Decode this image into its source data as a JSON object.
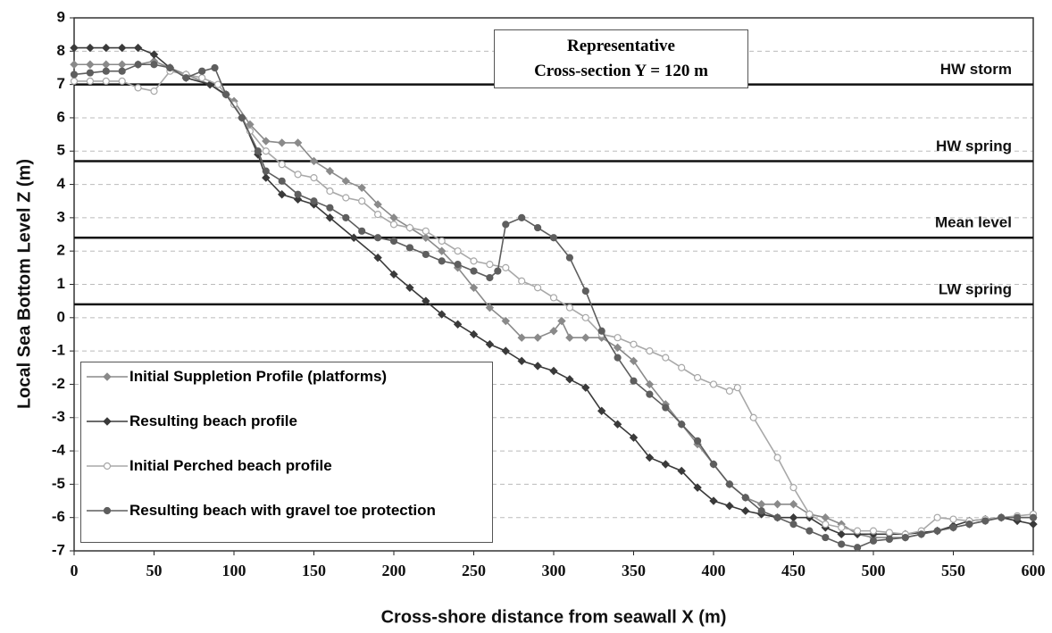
{
  "chart_data": {
    "type": "line",
    "title_lines": [
      "Representative",
      "Cross-section Y = 120 m"
    ],
    "x_label": "Cross-shore distance from seawall X (m)",
    "y_label": "Local Sea Bottom Level Z (m)",
    "xlim": [
      0,
      600
    ],
    "xticks": [
      0,
      50,
      100,
      150,
      200,
      250,
      300,
      350,
      400,
      450,
      500,
      550,
      600
    ],
    "ylim": [
      -7,
      9
    ],
    "yticks": [
      -7,
      -6,
      -5,
      -4,
      -3,
      -2,
      -1,
      0,
      1,
      2,
      3,
      4,
      5,
      6,
      7,
      8,
      9
    ],
    "grid": true,
    "reference_lines": [
      {
        "label": "HW storm",
        "value": 7
      },
      {
        "label": "HW spring",
        "value": 4.7
      },
      {
        "label": "Mean level",
        "value": 2.4
      },
      {
        "label": "LW spring",
        "value": 0.4
      }
    ],
    "series": [
      {
        "name": "Initial Suppletion Profile (platforms)",
        "color": "#8a8a8a",
        "marker": "diamond",
        "x": [
          0,
          10,
          20,
          30,
          40,
          50,
          60,
          70,
          85,
          100,
          110,
          120,
          130,
          140,
          150,
          160,
          170,
          180,
          190,
          200,
          210,
          220,
          230,
          240,
          250,
          260,
          270,
          280,
          290,
          300,
          305,
          310,
          320,
          330,
          340,
          350,
          360,
          370,
          380,
          390,
          400,
          410,
          420,
          430,
          440,
          450,
          460,
          470,
          480,
          490,
          500,
          510,
          520,
          530,
          540,
          550,
          560,
          570,
          580,
          590,
          600
        ],
        "values": [
          7.6,
          7.6,
          7.6,
          7.6,
          7.6,
          7.7,
          7.5,
          7.3,
          7.0,
          6.5,
          5.8,
          5.3,
          5.25,
          5.25,
          4.7,
          4.4,
          4.1,
          3.9,
          3.4,
          3.0,
          2.7,
          2.4,
          2.0,
          1.5,
          0.9,
          0.3,
          -0.1,
          -0.6,
          -0.6,
          -0.4,
          -0.1,
          -0.6,
          -0.6,
          -0.6,
          -0.9,
          -1.3,
          -2.0,
          -2.6,
          -3.2,
          -3.8,
          -4.4,
          -5.0,
          -5.4,
          -5.6,
          -5.6,
          -5.6,
          -5.9,
          -6.0,
          -6.2,
          -6.5,
          -6.6,
          -6.6,
          -6.6,
          -6.5,
          -6.4,
          -6.3,
          -6.2,
          -6.1,
          -6.0,
          -6.0,
          -6.0
        ]
      },
      {
        "name": "Resulting beach profile",
        "color": "#3a3a3a",
        "marker": "diamond",
        "x": [
          0,
          10,
          20,
          30,
          40,
          50,
          60,
          70,
          85,
          95,
          105,
          115,
          120,
          130,
          140,
          150,
          160,
          175,
          190,
          200,
          210,
          220,
          230,
          240,
          250,
          260,
          270,
          280,
          290,
          300,
          310,
          320,
          330,
          340,
          350,
          360,
          370,
          380,
          390,
          400,
          410,
          420,
          430,
          440,
          450,
          460,
          470,
          480,
          490,
          500,
          510,
          520,
          530,
          540,
          550,
          560,
          570,
          580,
          590,
          600
        ],
        "values": [
          8.1,
          8.1,
          8.1,
          8.1,
          8.1,
          7.9,
          7.5,
          7.2,
          7.0,
          6.7,
          6.0,
          4.9,
          4.2,
          3.7,
          3.55,
          3.4,
          3.0,
          2.4,
          1.8,
          1.3,
          0.9,
          0.5,
          0.1,
          -0.2,
          -0.5,
          -0.8,
          -1.0,
          -1.3,
          -1.45,
          -1.6,
          -1.85,
          -2.1,
          -2.8,
          -3.2,
          -3.6,
          -4.2,
          -4.4,
          -4.6,
          -5.1,
          -5.5,
          -5.65,
          -5.8,
          -5.9,
          -6.0,
          -6.0,
          -6.0,
          -6.3,
          -6.5,
          -6.5,
          -6.5,
          -6.5,
          -6.5,
          -6.45,
          -6.4,
          -6.25,
          -6.1,
          -6.05,
          -6.0,
          -6.1,
          -6.2
        ]
      },
      {
        "name": "Initial Perched beach profile",
        "color": "#a8a8a8",
        "marker": "open-circle",
        "x": [
          0,
          10,
          20,
          30,
          40,
          50,
          60,
          70,
          80,
          90,
          100,
          110,
          120,
          130,
          140,
          150,
          160,
          170,
          180,
          190,
          200,
          210,
          220,
          230,
          240,
          250,
          260,
          270,
          280,
          290,
          300,
          310,
          320,
          330,
          340,
          350,
          360,
          370,
          380,
          390,
          400,
          410,
          415,
          425,
          440,
          450,
          460,
          470,
          480,
          490,
          500,
          510,
          520,
          530,
          540,
          550,
          560,
          570,
          580,
          590,
          600
        ],
        "values": [
          7.1,
          7.1,
          7.1,
          7.1,
          6.9,
          6.8,
          7.4,
          7.3,
          7.2,
          7.0,
          6.4,
          5.6,
          5.0,
          4.6,
          4.3,
          4.2,
          3.8,
          3.6,
          3.5,
          3.1,
          2.8,
          2.7,
          2.6,
          2.3,
          2.0,
          1.7,
          1.6,
          1.5,
          1.1,
          0.9,
          0.6,
          0.3,
          0.0,
          -0.5,
          -0.6,
          -0.8,
          -1.0,
          -1.2,
          -1.5,
          -1.8,
          -2.0,
          -2.2,
          -2.1,
          -3.0,
          -4.2,
          -5.1,
          -5.9,
          -6.2,
          -6.3,
          -6.4,
          -6.4,
          -6.45,
          -6.5,
          -6.4,
          -6.0,
          -6.05,
          -6.1,
          -6.05,
          -6.0,
          -5.95,
          -5.9
        ]
      },
      {
        "name": "Resulting beach with gravel toe protection",
        "color": "#5e5e5e",
        "marker": "circle",
        "x": [
          0,
          10,
          20,
          30,
          40,
          50,
          60,
          70,
          80,
          88,
          95,
          105,
          115,
          120,
          130,
          140,
          150,
          160,
          170,
          180,
          190,
          200,
          210,
          220,
          230,
          240,
          250,
          260,
          265,
          270,
          280,
          290,
          300,
          310,
          320,
          330,
          340,
          350,
          360,
          370,
          380,
          390,
          400,
          410,
          420,
          430,
          440,
          450,
          460,
          470,
          480,
          490,
          500,
          510,
          520,
          530,
          540,
          550,
          560,
          570,
          580,
          590,
          600
        ],
        "values": [
          7.3,
          7.35,
          7.4,
          7.4,
          7.6,
          7.6,
          7.5,
          7.2,
          7.4,
          7.5,
          6.7,
          6.0,
          5.0,
          4.4,
          4.1,
          3.7,
          3.5,
          3.3,
          3.0,
          2.6,
          2.4,
          2.3,
          2.1,
          1.9,
          1.7,
          1.6,
          1.4,
          1.2,
          1.4,
          2.8,
          3.0,
          2.7,
          2.4,
          1.8,
          0.8,
          -0.4,
          -1.2,
          -1.9,
          -2.3,
          -2.7,
          -3.2,
          -3.7,
          -4.4,
          -5.0,
          -5.4,
          -5.8,
          -6.0,
          -6.2,
          -6.4,
          -6.6,
          -6.8,
          -6.9,
          -6.7,
          -6.65,
          -6.6,
          -6.5,
          -6.4,
          -6.3,
          -6.2,
          -6.1,
          -6.0,
          -6.0,
          -6.0
        ]
      }
    ]
  }
}
